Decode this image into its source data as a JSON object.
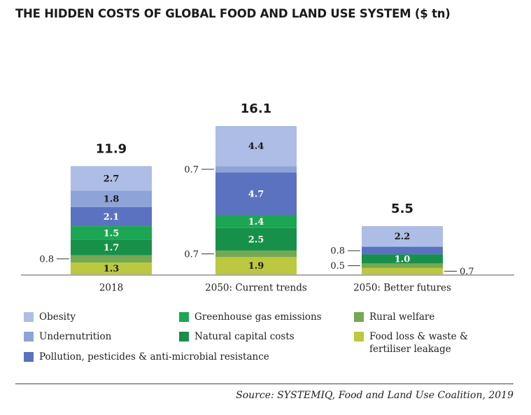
{
  "title": "THE HIDDEN COSTS OF GLOBAL FOOD AND LAND USE SYSTEM ($ tn)",
  "source": "Source: SYSTEMIQ, Food and Land Use Coalition, 2019",
  "chart_data": {
    "type": "bar",
    "stacked": true,
    "unit": "$ tn",
    "categories": [
      "2018",
      "2050: Current trends",
      "2050: Better futures"
    ],
    "totals": [
      "11.9",
      "16.1",
      "5.5"
    ],
    "series": [
      {
        "name": "Food loss & waste & fertiliser leakage",
        "color": "#bcc83f",
        "values": [
          1.3,
          1.9,
          0.7
        ],
        "labels": [
          "1.3",
          "1.9",
          "0.7"
        ]
      },
      {
        "name": "Rural welfare",
        "color": "#74a852",
        "values": [
          0.8,
          0.7,
          0.5
        ],
        "labels": [
          "0.8",
          "0.7",
          "0.5"
        ]
      },
      {
        "name": "Natural capital costs",
        "color": "#17904a",
        "values": [
          1.7,
          2.5,
          1.0
        ],
        "labels": [
          "1.7",
          "2.5",
          "1.0"
        ]
      },
      {
        "name": "Greenhouse gas emissions",
        "color": "#1ca653",
        "values": [
          1.5,
          1.4,
          0.0
        ],
        "labels": [
          "1.5",
          "1.4",
          ""
        ]
      },
      {
        "name": "Pollution, pesticides & anti-microbial resistance",
        "color": "#5a72bf",
        "values": [
          2.1,
          4.7,
          0.8
        ],
        "labels": [
          "2.1",
          "4.7",
          "0.8"
        ]
      },
      {
        "name": "Undernutrition",
        "color": "#8ea4d8",
        "values": [
          1.8,
          0.7,
          0.1
        ],
        "labels": [
          "1.8",
          "0.7",
          ""
        ]
      },
      {
        "name": "Obesity",
        "color": "#aebde5",
        "values": [
          2.7,
          4.4,
          2.2
        ],
        "labels": [
          "2.7",
          "4.4",
          "2.2"
        ]
      }
    ],
    "ylim": [
      0,
      16.1
    ],
    "grid": false,
    "legend": [
      {
        "label": "Obesity",
        "color": "#aebde5"
      },
      {
        "label": "Undernutrition",
        "color": "#8ea4d8"
      },
      {
        "label": "Pollution, pesticides & anti-microbial resistance",
        "color": "#5a72bf"
      },
      {
        "label": "Greenhouse gas emissions",
        "color": "#1ca653"
      },
      {
        "label": "Natural capital costs",
        "color": "#17904a"
      },
      {
        "label": "Rural welfare",
        "color": "#74a852"
      },
      {
        "label": "Food loss & waste & fertiliser leakage",
        "color": "#bcc83f"
      }
    ]
  }
}
